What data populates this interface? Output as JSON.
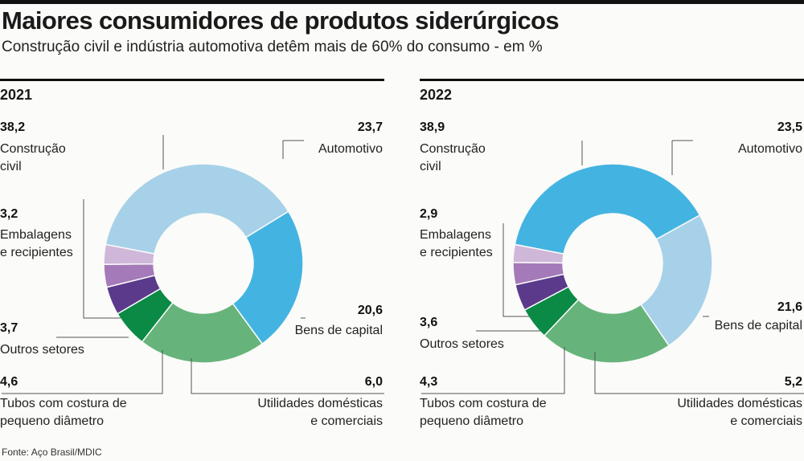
{
  "header": {
    "title": "Maiores consumidores de produtos siderúrgicos",
    "subtitle": "Construção civil e indústria automotiva detêm mais de 60% do consumo - em %"
  },
  "source": "Fonte: Aço Brasil/MDIC",
  "chart_data": [
    {
      "type": "pie",
      "title": "2021",
      "categories": [
        "Construção civil",
        "Automotivo",
        "Bens de capital",
        "Utilidades domésticas e comerciais",
        "Tubos com costura de pequeno diâmetro",
        "Outros setores",
        "Embalagens e recipientes"
      ],
      "values": [
        38.2,
        23.7,
        20.6,
        6.0,
        4.6,
        3.7,
        3.2
      ],
      "value_labels": [
        "38,2",
        "23,7",
        "20,6",
        "6,0",
        "4,6",
        "3,7",
        "3,2"
      ],
      "colors": [
        "#a7d1e8",
        "#43b4e2",
        "#66b47b",
        "#0b8a45",
        "#5b3a8b",
        "#a47ab9",
        "#cfb7da"
      ]
    },
    {
      "type": "pie",
      "title": "2022",
      "categories": [
        "Construção civil",
        "Automotivo",
        "Bens de capital",
        "Utilidades domésticas e comerciais",
        "Tubos com costura de pequeno diâmetro",
        "Outros setores",
        "Embalagens e recipientes"
      ],
      "values": [
        38.9,
        23.5,
        21.6,
        5.2,
        4.3,
        3.6,
        2.9
      ],
      "value_labels": [
        "38,9",
        "23,5",
        "21,6",
        "5,2",
        "4,3",
        "3,6",
        "2,9"
      ],
      "colors": [
        "#43b4e2",
        "#a7d1e8",
        "#66b47b",
        "#0b8a45",
        "#5b3a8b",
        "#a47ab9",
        "#cfb7da"
      ]
    }
  ],
  "labels": {
    "construcao": "Construção\ncivil",
    "automotivo": "Automotivo",
    "embalagens": "Embalagens\ne recipientes",
    "bens": "Bens de capital",
    "outros": "Outros setores",
    "tubos": "Tubos com costura de\npequeno diâmetro",
    "utilidades": "Utilidades domésticas\ne comerciais"
  }
}
